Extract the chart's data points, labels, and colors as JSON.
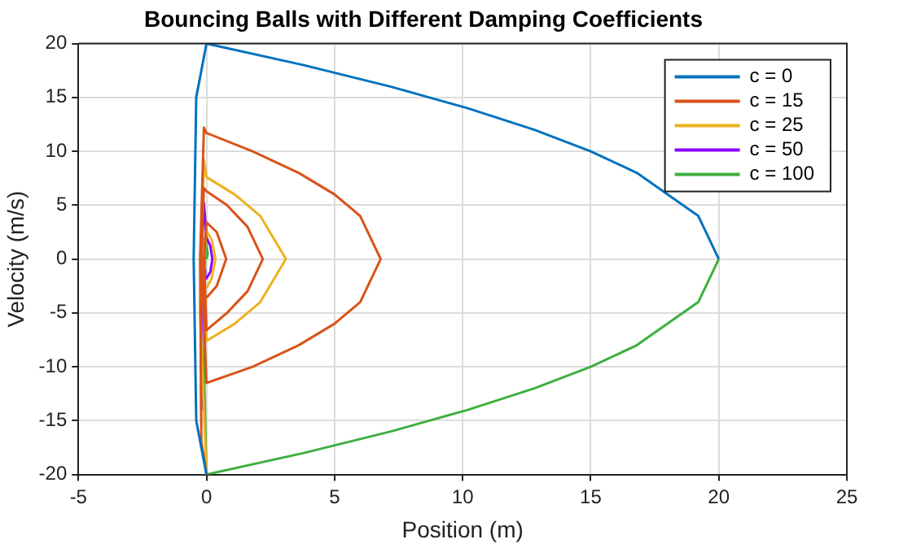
{
  "chart_data": {
    "type": "line",
    "title": "Bouncing Balls with Different Damping Coefficients",
    "xlabel": "Position (m)",
    "ylabel": "Velocity (m/s)",
    "xlim": [
      -5,
      25
    ],
    "xticks": [
      -5,
      0,
      5,
      10,
      15,
      20,
      25
    ],
    "ylim": [
      -20,
      20
    ],
    "yticks": [
      -20,
      -15,
      -10,
      -5,
      0,
      5,
      10,
      15,
      20
    ],
    "grid": true,
    "legend": "top right",
    "marker": "none",
    "line_style": "solid",
    "series": [
      {
        "name": "c = 0",
        "color": "#0072bd",
        "x": [
          0,
          -0.4,
          -0.5,
          -0.4,
          0,
          3.8,
          7.2,
          10.2,
          12.8,
          15,
          16.8,
          19.2,
          20
        ],
        "values": [
          -20,
          -15,
          0,
          15,
          20,
          18,
          16,
          14,
          12,
          10,
          8,
          4,
          0
        ]
      },
      {
        "name": "c = 15",
        "color": "#d95319",
        "x": [
          0,
          -0.2,
          -0.25,
          -0.1,
          0,
          1.8,
          3.6,
          5,
          6,
          6.8,
          6,
          5,
          3.6,
          1.8,
          0,
          -0.2,
          -0.1,
          0,
          0.8,
          1.6,
          2.2,
          1.6,
          0.8,
          0,
          -0.1,
          0,
          0.4,
          0.77,
          0.4,
          0
        ],
        "values": [
          -20,
          -17,
          0,
          12.2,
          11.7,
          10,
          8,
          6,
          4,
          0,
          -4,
          -6,
          -8,
          -10,
          -11.5,
          0,
          6.6,
          6.3,
          5,
          3,
          0,
          -3,
          -5,
          -6.6,
          0,
          3.4,
          2.5,
          0,
          -2.5,
          -3.6
        ]
      },
      {
        "name": "c = 25",
        "color": "#edb120",
        "x": [
          0,
          -0.25,
          -0.1,
          0,
          1.1,
          2.1,
          3.1,
          2.1,
          1.1,
          0,
          -0.1,
          0,
          0.2,
          0.35,
          0.2,
          0
        ],
        "values": [
          -20,
          -5,
          9.2,
          7.6,
          6,
          4,
          0,
          -4,
          -6,
          -7.6,
          0,
          2.6,
          1.8,
          0,
          -1.8,
          -2.7
        ]
      },
      {
        "name": "c = 50",
        "color": "#8b00ff",
        "x": [
          -0.2,
          -0.2,
          -0.1,
          0,
          0.15,
          0.23,
          0.15,
          0,
          -0.05
        ],
        "values": [
          -14,
          0,
          5.2,
          2,
          1.2,
          0,
          -1.2,
          -1.8,
          -1
        ]
      },
      {
        "name": "c = 100",
        "color": "#3fae3f",
        "x": [
          20,
          19.2,
          16.8,
          15,
          12.8,
          10.2,
          7.2,
          3.8,
          0,
          -0.1,
          -0.05,
          0.05,
          0
        ],
        "values": [
          0,
          -4,
          -8,
          -10,
          -12,
          -14,
          -16,
          -18,
          -20,
          -10,
          2,
          0.5,
          0
        ]
      }
    ]
  }
}
